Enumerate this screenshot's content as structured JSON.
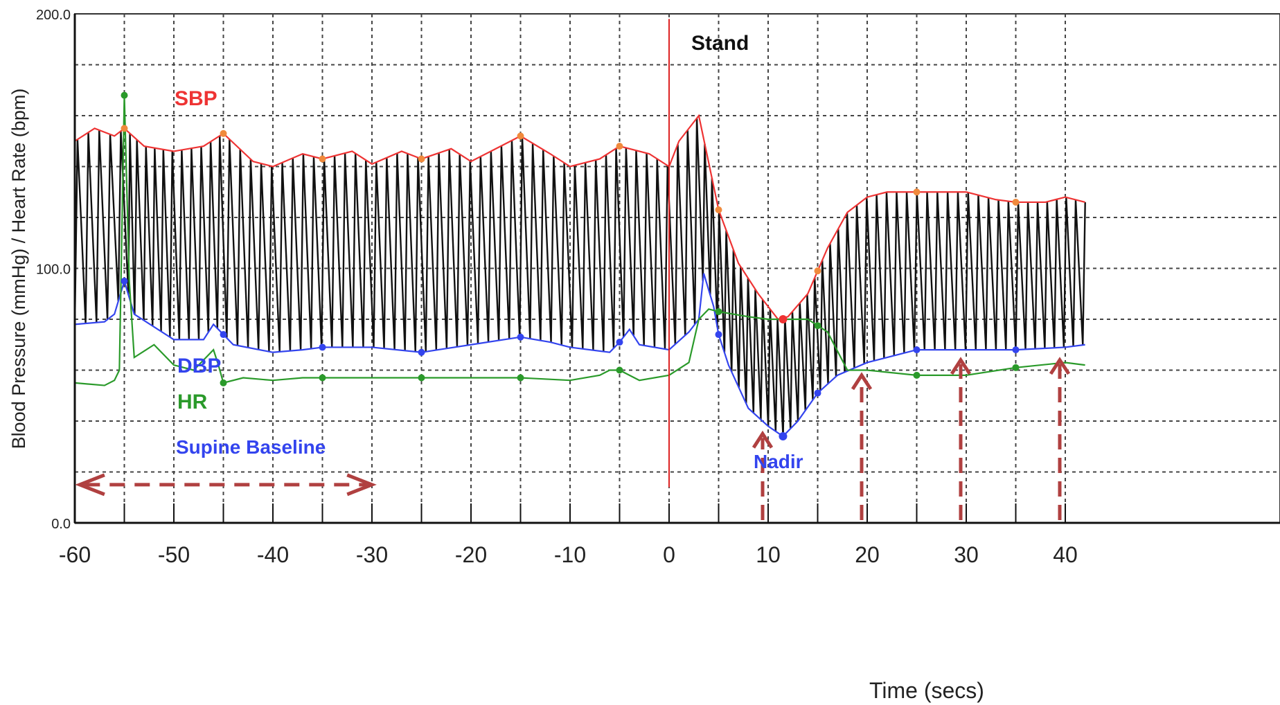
{
  "chart_data": {
    "type": "line",
    "title": "",
    "xlabel": "Time (secs)",
    "ylabel": "Blood Pressure (mmHg) / Heart Rate (bpm)",
    "xlim": [
      -60,
      42
    ],
    "ylim": [
      0,
      200
    ],
    "x_ticks": [
      -60,
      -50,
      -40,
      -30,
      -20,
      -10,
      0,
      10,
      20,
      30,
      40
    ],
    "y_tick_labels": [
      "200.0",
      "100.0",
      "0.0"
    ],
    "y_tick_values": [
      200,
      100,
      0
    ],
    "grid": true,
    "series": [
      {
        "name": "SBP",
        "color": "#ee3333",
        "x": [
          -60,
          -58,
          -56,
          -55,
          -53,
          -50,
          -47,
          -45,
          -42,
          -40,
          -37,
          -35,
          -32,
          -30,
          -27,
          -25,
          -22,
          -20,
          -17,
          -15,
          -12,
          -10,
          -7,
          -5,
          -2,
          0,
          1,
          3,
          5,
          7,
          9,
          11,
          12,
          14,
          16,
          18,
          20,
          22,
          25,
          28,
          30,
          33,
          35,
          38,
          40,
          42
        ],
        "y": [
          150,
          155,
          152,
          155,
          148,
          146,
          148,
          153,
          142,
          140,
          145,
          143,
          146,
          141,
          146,
          143,
          147,
          142,
          148,
          152,
          145,
          140,
          143,
          148,
          145,
          140,
          150,
          160,
          123,
          102,
          90,
          80,
          81,
          90,
          108,
          122,
          128,
          130,
          130,
          130,
          130,
          127,
          126,
          126,
          128,
          126
        ]
      },
      {
        "name": "DBP",
        "color": "#3344ee",
        "x": [
          -60,
          -57,
          -56,
          -55,
          -54,
          -50,
          -47,
          -46,
          -45,
          -44,
          -40,
          -37,
          -35,
          -30,
          -25,
          -20,
          -15,
          -12,
          -10,
          -6,
          -5,
          -4,
          -3,
          0,
          2,
          3,
          3.5,
          4.5,
          5,
          6,
          8,
          10,
          11.5,
          13,
          15,
          17,
          20,
          25,
          30,
          35,
          40,
          42
        ],
        "y": [
          78,
          79,
          82,
          95,
          82,
          72,
          72,
          78,
          74,
          70,
          67,
          68,
          69,
          69,
          67,
          70,
          73,
          71,
          69,
          67,
          71,
          76,
          70,
          68,
          75,
          80,
          98,
          85,
          74,
          62,
          45,
          38,
          34,
          40,
          51,
          58,
          63,
          68,
          68,
          68,
          69,
          70
        ]
      },
      {
        "name": "HR",
        "color": "#2a9a2a",
        "x": [
          -60,
          -57,
          -56,
          -55.5,
          -55,
          -54.5,
          -54,
          -52,
          -50,
          -48,
          -46,
          -45.5,
          -45,
          -43,
          -40,
          -37,
          -35,
          -30,
          -25,
          -20,
          -15,
          -10,
          -7,
          -6,
          -5,
          -4,
          -3,
          0,
          2,
          3,
          4,
          5,
          8,
          10,
          12,
          14,
          16,
          18,
          20,
          25,
          30,
          35,
          40,
          42
        ],
        "y": [
          55,
          54,
          56,
          60,
          168,
          95,
          65,
          70,
          62,
          60,
          68,
          62,
          55,
          57,
          56,
          57,
          57,
          57,
          57,
          57,
          57,
          56,
          58,
          60,
          60,
          58,
          56,
          58,
          63,
          80,
          84,
          83,
          81,
          80,
          80,
          80,
          75,
          60,
          60,
          58,
          58,
          61,
          63,
          62
        ]
      }
    ],
    "annotations": {
      "sbp_label": "SBP",
      "dbp_label": "DBP",
      "hr_label": "HR",
      "baseline_label": "Supine Baseline",
      "stand_label": "Stand",
      "nadir_label": "Nadir"
    },
    "colors": {
      "waveform": "#111111",
      "stand_marker": "#dd2222",
      "arrow": "#b04040",
      "grid": "#444444"
    }
  }
}
